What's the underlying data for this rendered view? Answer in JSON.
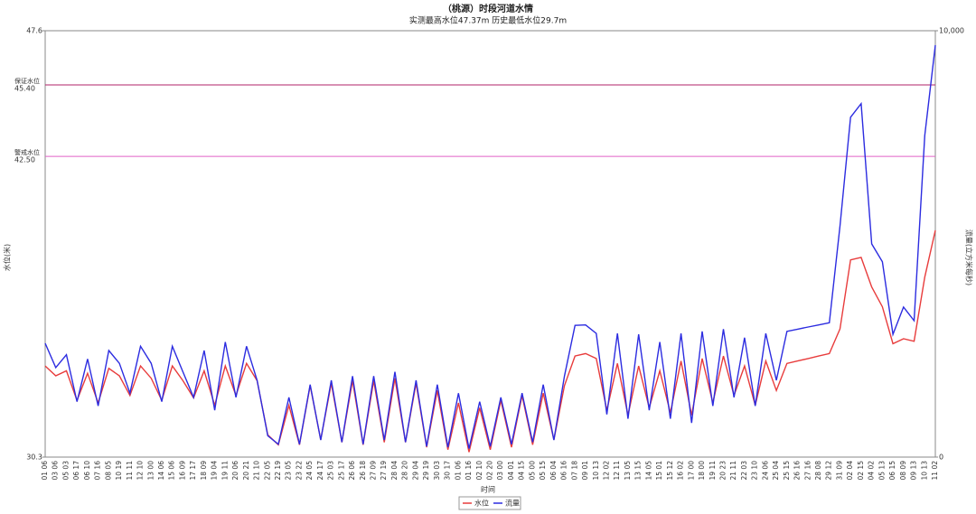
{
  "chart_data": {
    "type": "line",
    "title": "（桃源）时段河道水情",
    "subtitle": "实测最高水位47.37m 历史最低水位29.7m",
    "x_label": "时间",
    "y_label": "水位(米)",
    "y2_label": "流量(立方米每秒)",
    "ylim": [
      30.3,
      47.6
    ],
    "yticks": [
      30.3,
      47.6
    ],
    "y2lim": [
      0,
      10000
    ],
    "y2ticks": [
      0,
      {
        "value": 10000,
        "label": "10,000"
      }
    ],
    "reference_lines": [
      {
        "name": "保证水位",
        "value": 45.4,
        "value_label": "45.40",
        "color": "#b0206a"
      },
      {
        "name": "警戒水位",
        "value": 42.5,
        "value_label": "42.50",
        "color": "#e060c8"
      }
    ],
    "categories": [
      "01 06",
      "03 06",
      "05 03",
      "06 17",
      "06 10",
      "07 16",
      "08 05",
      "10 19",
      "11 11",
      "12 10",
      "13 00",
      "14 06",
      "15 06",
      "16 09",
      "17 17",
      "18 09",
      "19 04",
      "19 11",
      "20 06",
      "20 21",
      "21 10",
      "22 05",
      "22 19",
      "23 05",
      "23 22",
      "24 05",
      "24 17",
      "25 03",
      "25 17",
      "26 06",
      "26 18",
      "27 09",
      "27 19",
      "28 04",
      "28 20",
      "29 04",
      "29 19",
      "30 03",
      "30 17",
      "01 06",
      "01 16",
      "02 10",
      "02 20",
      "03 00",
      "04 01",
      "04 15",
      "05 00",
      "05 15",
      "06 04",
      "06 16",
      "07 18",
      "09 01",
      "10 13",
      "12 02",
      "12 11",
      "13 05",
      "13 15",
      "14 05",
      "15 01",
      "15 12",
      "16 02",
      "17 00",
      "18 00",
      "19 11",
      "20 23",
      "21 11",
      "22 03",
      "23 10",
      "24 06",
      "25 04",
      "25 15",
      "26 16",
      "27 16",
      "28 08",
      "29 12",
      "31 09",
      "02 04",
      "02 15",
      "04 02",
      "05 13",
      "06 15",
      "08 09",
      "09 13",
      "10 13",
      "11 02"
    ],
    "series": [
      {
        "name": "水位",
        "color": "#e83c3c",
        "values": [
          34.0,
          33.6,
          33.8,
          32.6,
          33.7,
          32.5,
          33.9,
          33.6,
          32.8,
          34.0,
          33.5,
          32.6,
          34.0,
          33.4,
          32.7,
          33.8,
          32.4,
          34.0,
          32.8,
          34.1,
          33.4,
          31.2,
          30.8,
          32.4,
          30.8,
          33.2,
          31.0,
          33.3,
          30.9,
          33.4,
          30.8,
          33.4,
          30.9,
          33.5,
          30.9,
          33.3,
          30.7,
          33.0,
          30.6,
          32.5,
          30.5,
          32.3,
          30.6,
          32.6,
          30.7,
          32.8,
          30.8,
          32.9,
          31.0,
          33.2,
          34.4,
          34.5,
          34.3,
          32.2,
          34.1,
          32.0,
          34.0,
          32.3,
          33.8,
          32.1,
          34.2,
          32.0,
          34.3,
          32.5,
          34.4,
          32.8,
          34.0,
          32.4,
          34.2,
          33.0,
          34.1,
          34.2,
          34.3,
          34.4,
          34.5,
          35.5,
          38.3,
          38.4,
          37.2,
          36.4,
          34.9,
          35.1,
          35.0,
          37.6,
          39.5
        ]
      },
      {
        "name": "流量",
        "color": "#2c2ce0",
        "axis": "y2",
        "values": [
          2670,
          2100,
          2400,
          1300,
          2300,
          1200,
          2500,
          2200,
          1500,
          2600,
          2200,
          1300,
          2600,
          2000,
          1400,
          2500,
          1100,
          2700,
          1400,
          2600,
          1800,
          500,
          300,
          1400,
          300,
          1700,
          400,
          1800,
          350,
          1900,
          300,
          1900,
          400,
          2000,
          350,
          1800,
          250,
          1700,
          230,
          1500,
          200,
          1300,
          250,
          1400,
          300,
          1500,
          350,
          1700,
          400,
          1900,
          3090,
          3100,
          2900,
          1000,
          2900,
          900,
          2880,
          1100,
          2700,
          900,
          2900,
          800,
          2950,
          1200,
          3000,
          1400,
          2800,
          1200,
          2900,
          1800,
          2950,
          3000,
          3050,
          3100,
          3150,
          5420,
          7970,
          8290,
          5000,
          4580,
          2880,
          3520,
          3200,
          7540,
          9660
        ]
      }
    ]
  }
}
